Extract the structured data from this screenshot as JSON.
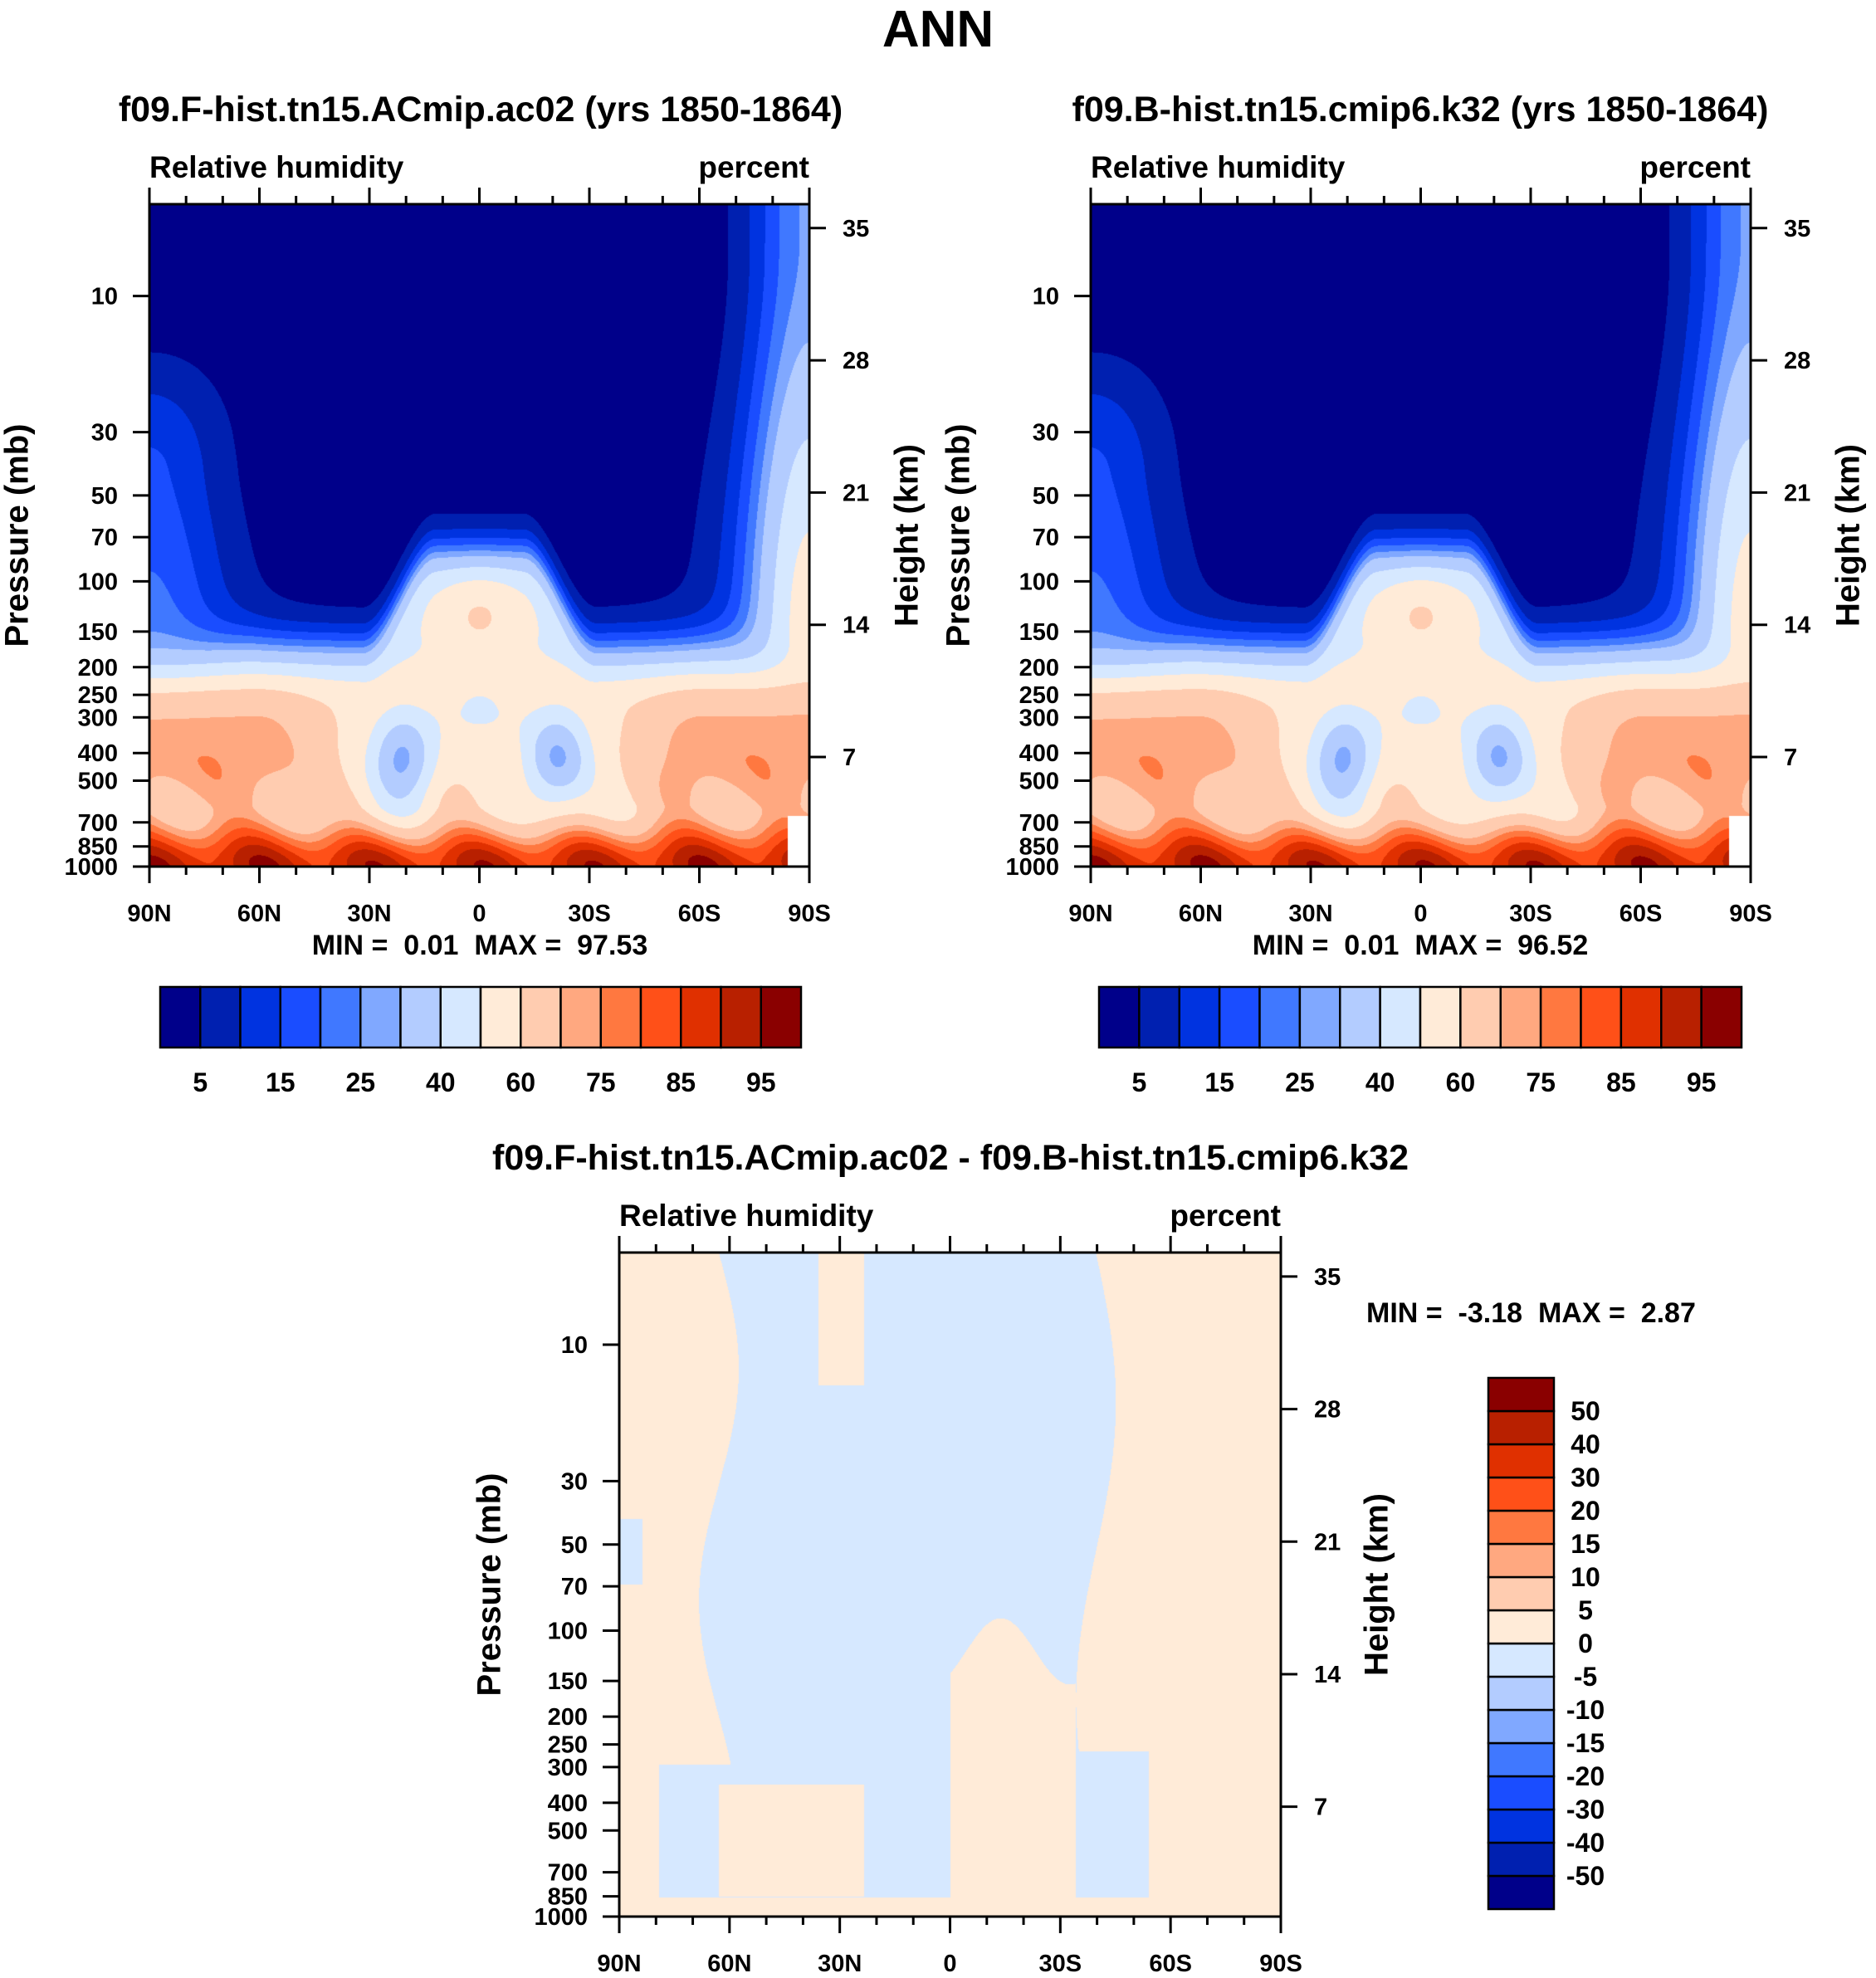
{
  "title": "ANN",
  "chart_data": [
    {
      "type": "heatmap",
      "title": "f09.F-hist.tn15.ACmip.ac02 (yrs 1850-1864)",
      "left_string": "Relative humidity",
      "right_string": "percent",
      "ylabel": "Pressure (mb)",
      "ylabel_right": "Height (km)",
      "x_ticks": [
        "90N",
        "60N",
        "30N",
        "0",
        "30S",
        "60S",
        "90S"
      ],
      "y_ticks": [
        "10",
        "30",
        "50",
        "70",
        "100",
        "150",
        "200",
        "250",
        "300",
        "400",
        "500",
        "700",
        "850",
        "1000"
      ],
      "y_right_ticks": [
        "35",
        "28",
        "21",
        "14",
        "7"
      ],
      "min_label": "MIN =",
      "min": "0.01",
      "max_label": "MAX =",
      "max": "97.53",
      "colorbar": {
        "levels": [
          5,
          10,
          15,
          20,
          25,
          30,
          40,
          50,
          60,
          70,
          75,
          80,
          85,
          90,
          95
        ],
        "labels": [
          "5",
          "15",
          "25",
          "40",
          "60",
          "75",
          "85",
          "95"
        ]
      }
    },
    {
      "type": "heatmap",
      "title": "f09.B-hist.tn15.cmip6.k32 (yrs 1850-1864)",
      "left_string": "Relative humidity",
      "right_string": "percent",
      "ylabel": "Pressure (mb)",
      "ylabel_right": "Height (km)",
      "x_ticks": [
        "90N",
        "60N",
        "30N",
        "0",
        "30S",
        "60S",
        "90S"
      ],
      "y_ticks": [
        "10",
        "30",
        "50",
        "70",
        "100",
        "150",
        "200",
        "250",
        "300",
        "400",
        "500",
        "700",
        "850",
        "1000"
      ],
      "y_right_ticks": [
        "35",
        "28",
        "21",
        "14",
        "7"
      ],
      "min_label": "MIN =",
      "min": "0.01",
      "max_label": "MAX =",
      "max": "96.52",
      "colorbar": {
        "levels": [
          5,
          10,
          15,
          20,
          25,
          30,
          40,
          50,
          60,
          70,
          75,
          80,
          85,
          90,
          95
        ],
        "labels": [
          "5",
          "15",
          "25",
          "40",
          "60",
          "75",
          "85",
          "95"
        ]
      }
    },
    {
      "type": "heatmap",
      "title": "f09.F-hist.tn15.ACmip.ac02 - f09.B-hist.tn15.cmip6.k32",
      "left_string": "Relative humidity",
      "right_string": "percent",
      "ylabel": "Pressure (mb)",
      "ylabel_right": "Height (km)",
      "x_ticks": [
        "90N",
        "60N",
        "30N",
        "0",
        "30S",
        "60S",
        "90S"
      ],
      "y_ticks": [
        "10",
        "30",
        "50",
        "70",
        "100",
        "150",
        "200",
        "250",
        "300",
        "400",
        "500",
        "700",
        "850",
        "1000"
      ],
      "y_right_ticks": [
        "35",
        "28",
        "21",
        "14",
        "7"
      ],
      "min_label": "MIN =",
      "min": "-3.18",
      "max_label": "MAX =",
      "max": "2.87",
      "colorbar": {
        "levels": [
          -50,
          -40,
          -30,
          -20,
          -15,
          -10,
          -5,
          0,
          5,
          10,
          15,
          20,
          30,
          40,
          50
        ],
        "labels": [
          "-50",
          "-40",
          "-30",
          "-20",
          "-15",
          "-10",
          "-5",
          "0",
          "5",
          "10",
          "15",
          "20",
          "30",
          "40",
          "50"
        ]
      }
    }
  ],
  "colors": [
    "#00008a",
    "#0020b0",
    "#0033e0",
    "#1a4dff",
    "#4078ff",
    "#80a8ff",
    "#b3ccff",
    "#d6e8ff",
    "#ffebd8",
    "#ffccb0",
    "#ffa880",
    "#ff7840",
    "#ff5018",
    "#e03000",
    "#b82000",
    "#8a0000"
  ]
}
